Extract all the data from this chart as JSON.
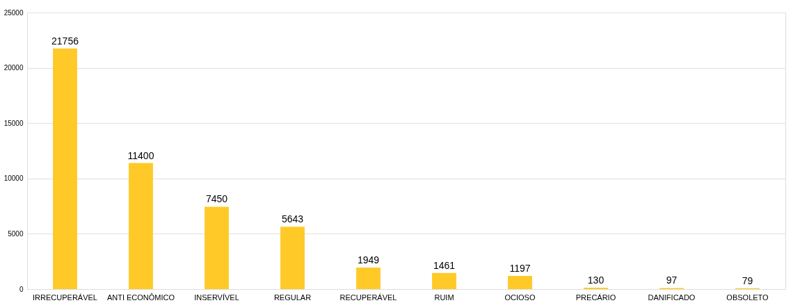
{
  "chart_data": {
    "type": "bar",
    "categories": [
      "IRRECUPERÁVEL",
      "ANTI ECONÔMICO",
      "INSERVÍVEL",
      "REGULAR",
      "RECUPERÁVEL",
      "RUIM",
      "OCIOSO",
      "PRECÁRIO",
      "DANIFICADO",
      "OBSOLETO"
    ],
    "values": [
      21756,
      11400,
      7450,
      5643,
      1949,
      1461,
      1197,
      130,
      97,
      79
    ],
    "color": "#ffca28",
    "ylim": [
      0,
      25000
    ],
    "yticks": [
      0,
      5000,
      10000,
      15000,
      20000,
      25000
    ],
    "grid": "y",
    "data_labels": true
  }
}
